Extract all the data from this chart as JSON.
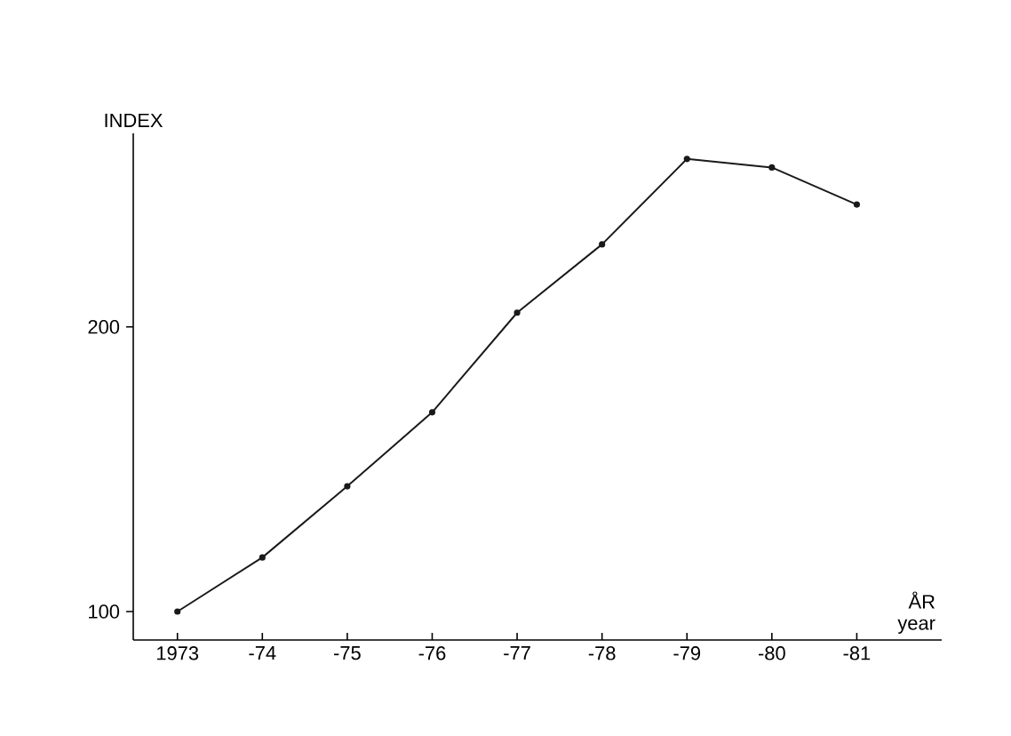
{
  "chart_data": {
    "type": "line",
    "xlabel": "ÅR year",
    "ylabel": "INDEX",
    "categories": [
      "1973",
      "-74",
      "-75",
      "-76",
      "-77",
      "-78",
      "-79",
      "-80",
      "-81"
    ],
    "values": [
      100,
      119,
      144,
      170,
      205,
      229,
      259,
      256,
      243
    ],
    "color": "#1a1a1a",
    "marker": "circle",
    "line_style": "solid",
    "grid": false,
    "ylim": [
      90,
      268
    ],
    "yticks": [
      100,
      200
    ]
  }
}
